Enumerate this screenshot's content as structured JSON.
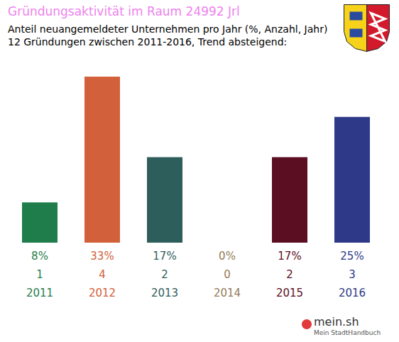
{
  "chart_data": {
    "type": "bar",
    "title": "Gründungsaktivität im Raum 24992 Jrl",
    "subtitle": [
      "Anteil neuangemeldeter Unternehmen pro Jahr (%, Anzahl, Jahr)",
      "12 Gründungen zwischen 2011-2016, Trend absteigend:"
    ],
    "categories": [
      "2011",
      "2012",
      "2013",
      "2014",
      "2015",
      "2016"
    ],
    "values": [
      8,
      33,
      17,
      0,
      17,
      25
    ],
    "value_labels": [
      "8%",
      "33%",
      "17%",
      "0%",
      "17%",
      "25%"
    ],
    "counts": [
      1,
      4,
      2,
      0,
      2,
      3
    ],
    "colors": [
      "#1f7d4c",
      "#d2603a",
      "#2e5e5c",
      "#937a58",
      "#5b0e22",
      "#2e3a88"
    ],
    "ylim": [
      0,
      33
    ],
    "grid": false,
    "data_labels": true,
    "tick_labels": false,
    "footer": {
      "brand": "mein.sh",
      "tagline": "Mein StadtHandbuch"
    }
  }
}
